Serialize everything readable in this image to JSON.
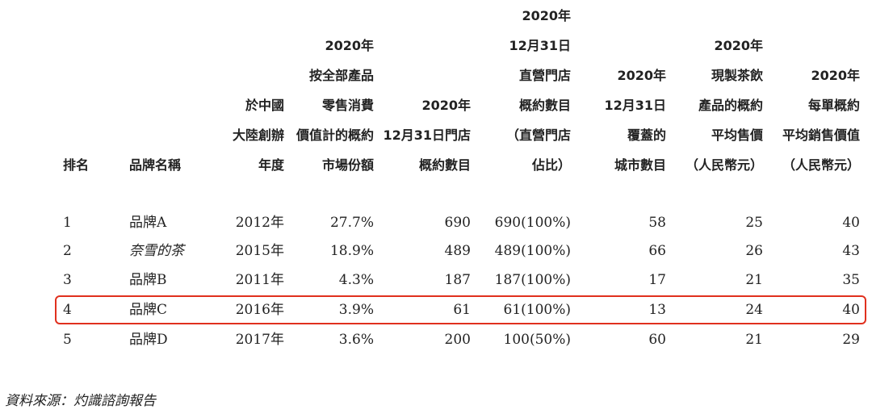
{
  "table": {
    "headers": [
      [
        "排名"
      ],
      [
        "品牌名稱"
      ],
      [
        "於中國",
        "大陸創辦",
        "年度"
      ],
      [
        "2020年",
        "按全部產品",
        "零售消費",
        "價值計的概約",
        "市場份額"
      ],
      [
        "2020年",
        "12月31日門店",
        "概約數目"
      ],
      [
        "2020年",
        "12月31日",
        "直營門店",
        "概約數目",
        "（直營門店",
        "佔比）"
      ],
      [
        "2020年",
        "12月31日",
        "覆蓋的",
        "城市數目"
      ],
      [
        "2020年",
        "現製茶飲",
        "產品的概約",
        "平均售價",
        "（人民幣元）"
      ],
      [
        "2020年",
        "每單概約",
        "平均銷售價值",
        "（人民幣元）"
      ]
    ],
    "rows": [
      [
        "1",
        "品牌A",
        "2012年",
        "27.7%",
        "690",
        "690(100%)",
        "58",
        "25",
        "40"
      ],
      [
        "2",
        "奈雪的茶",
        "2015年",
        "18.9%",
        "489",
        "489(100%)",
        "66",
        "26",
        "43"
      ],
      [
        "3",
        "品牌B",
        "2011年",
        "4.3%",
        "187",
        "187(100%)",
        "17",
        "21",
        "35"
      ],
      [
        "4",
        "品牌C",
        "2016年",
        "3.9%",
        "61",
        "61(100%)",
        "13",
        "24",
        "40"
      ],
      [
        "5",
        "品牌D",
        "2017年",
        "3.6%",
        "200",
        "100(50%)",
        "60",
        "21",
        "29"
      ]
    ]
  },
  "source": "資料來源：灼識諮詢報告"
}
